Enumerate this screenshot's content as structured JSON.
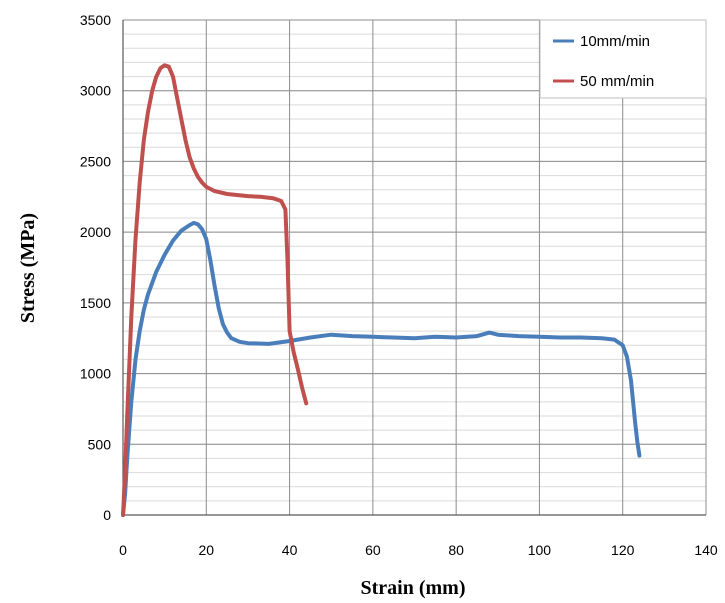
{
  "chart_data": {
    "type": "line",
    "title": "",
    "xlabel": "Strain (mm)",
    "ylabel": "Stress  (MPa)",
    "xlim": [
      0,
      140
    ],
    "ylim": [
      0,
      3500
    ],
    "xticks": [
      0,
      20,
      40,
      60,
      80,
      100,
      120,
      140
    ],
    "yticks": [
      0,
      500,
      1000,
      1500,
      2000,
      2500,
      3000,
      3500
    ],
    "grid": true,
    "minor_gridlines": true,
    "legend_position": "top-right",
    "series": [
      {
        "name": "10mm/min",
        "color": "#4a7ebb",
        "x": [
          0,
          0.5,
          1,
          2,
          3,
          4,
          5,
          6,
          8,
          10,
          12,
          14,
          16,
          17,
          18,
          19,
          20,
          21,
          22,
          23,
          24,
          25,
          26,
          28,
          30,
          35,
          40,
          45,
          50,
          55,
          60,
          65,
          70,
          75,
          80,
          85,
          88,
          90,
          95,
          100,
          105,
          110,
          115,
          118,
          120,
          121,
          122,
          122.5,
          123,
          123.5,
          124
        ],
        "y": [
          0,
          150,
          400,
          800,
          1100,
          1300,
          1450,
          1560,
          1720,
          1840,
          1940,
          2010,
          2050,
          2065,
          2055,
          2020,
          1950,
          1800,
          1620,
          1460,
          1350,
          1290,
          1250,
          1225,
          1215,
          1210,
          1230,
          1255,
          1275,
          1265,
          1260,
          1255,
          1250,
          1260,
          1255,
          1265,
          1290,
          1275,
          1265,
          1260,
          1255,
          1255,
          1250,
          1240,
          1200,
          1120,
          950,
          800,
          650,
          520,
          420
        ]
      },
      {
        "name": "50 mm/min",
        "color": "#c0504d",
        "x": [
          0,
          0.5,
          1,
          2,
          3,
          4,
          5,
          6,
          7,
          8,
          9,
          10,
          11,
          12,
          13,
          14,
          15,
          16,
          17,
          18,
          19,
          20,
          22,
          25,
          30,
          33,
          36,
          38,
          39,
          39.5,
          40,
          41,
          42,
          43,
          44
        ],
        "y": [
          0,
          300,
          700,
          1400,
          1950,
          2350,
          2650,
          2850,
          3000,
          3100,
          3160,
          3180,
          3170,
          3100,
          2950,
          2800,
          2650,
          2530,
          2450,
          2390,
          2350,
          2320,
          2290,
          2270,
          2255,
          2250,
          2240,
          2220,
          2160,
          1800,
          1300,
          1150,
          1030,
          900,
          790
        ]
      }
    ]
  }
}
